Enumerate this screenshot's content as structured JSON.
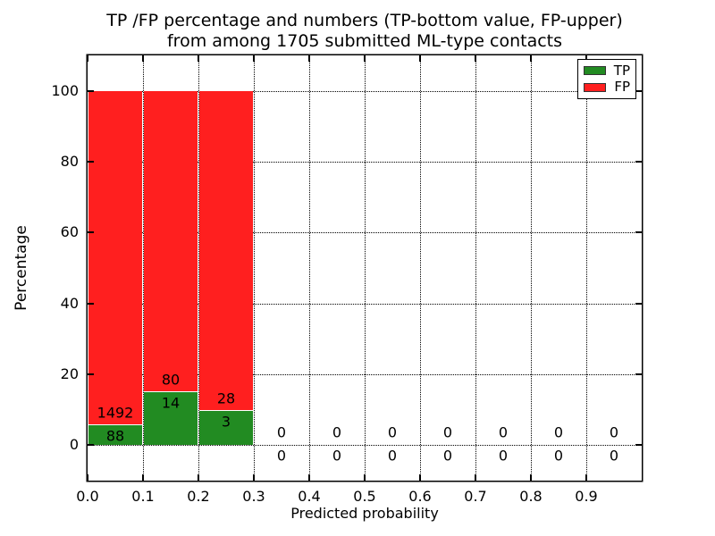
{
  "chart_data": {
    "type": "bar",
    "stacked": true,
    "title_line1": "TP /FP percentage and numbers (TP-bottom value, FP-upper)",
    "title_line2": "from among 1705 submitted ML-type contacts",
    "xlabel": "Predicted probability",
    "ylabel": "Percentage",
    "xlim": [
      0.0,
      1.0
    ],
    "ylim": [
      -10,
      110
    ],
    "x_ticks": [
      0.0,
      0.1,
      0.2,
      0.3,
      0.4,
      0.5,
      0.6,
      0.7,
      0.8,
      0.9
    ],
    "x_tick_labels": [
      "0.0",
      "0.1",
      "0.2",
      "0.3",
      "0.4",
      "0.5",
      "0.6",
      "0.7",
      "0.8",
      "0.9"
    ],
    "y_ticks": [
      0,
      20,
      40,
      60,
      80,
      100
    ],
    "y_tick_labels": [
      "0",
      "20",
      "40",
      "60",
      "80",
      "100"
    ],
    "grid": true,
    "grid_style": "dotted",
    "legend_position": "upper right",
    "total_contacts": 1705,
    "bar_value_unit": "percent of bin total (TP% + FP% = 100)",
    "series": [
      {
        "name": "TP",
        "color": "#228b22"
      },
      {
        "name": "FP",
        "color": "#ff1f1f"
      }
    ],
    "bins": [
      {
        "x0": 0.0,
        "x1": 0.1,
        "tp": 88,
        "fp": 1492
      },
      {
        "x0": 0.1,
        "x1": 0.2,
        "tp": 14,
        "fp": 80
      },
      {
        "x0": 0.2,
        "x1": 0.3,
        "tp": 3,
        "fp": 28
      },
      {
        "x0": 0.3,
        "x1": 0.4,
        "tp": 0,
        "fp": 0
      },
      {
        "x0": 0.4,
        "x1": 0.5,
        "tp": 0,
        "fp": 0
      },
      {
        "x0": 0.5,
        "x1": 0.6,
        "tp": 0,
        "fp": 0
      },
      {
        "x0": 0.6,
        "x1": 0.7,
        "tp": 0,
        "fp": 0
      },
      {
        "x0": 0.7,
        "x1": 0.8,
        "tp": 0,
        "fp": 0
      },
      {
        "x0": 0.8,
        "x1": 0.9,
        "tp": 0,
        "fp": 0
      },
      {
        "x0": 0.9,
        "x1": 1.0,
        "tp": 0,
        "fp": 0
      }
    ]
  }
}
